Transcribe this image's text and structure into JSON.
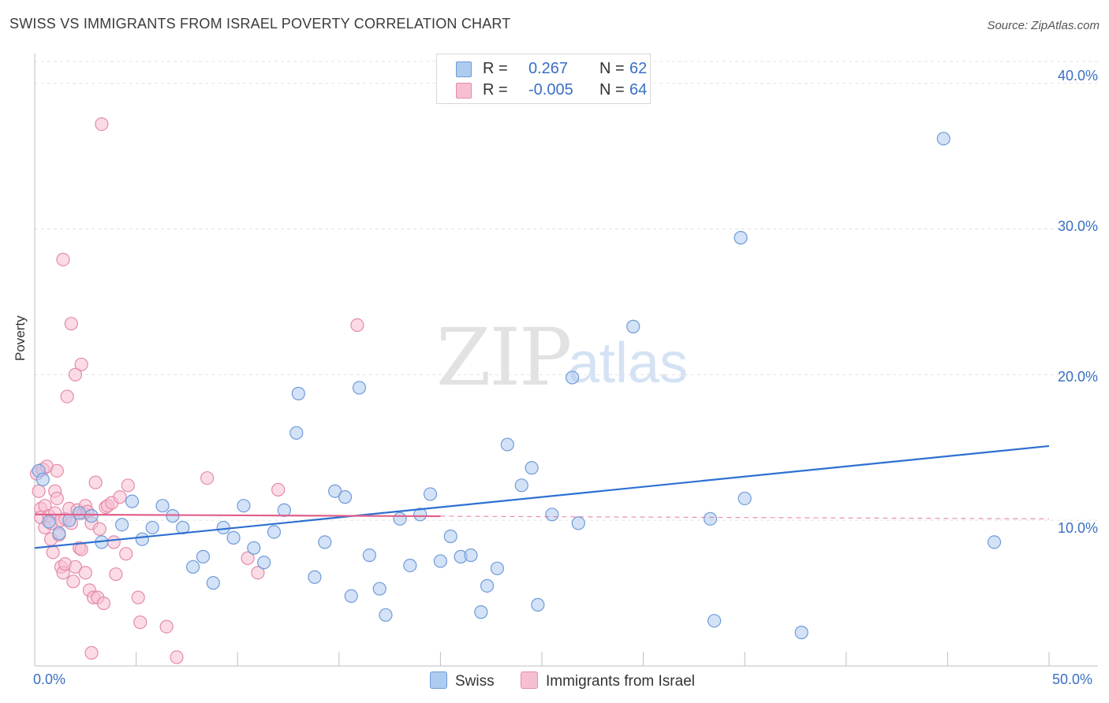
{
  "title": "SWISS VS IMMIGRANTS FROM ISRAEL POVERTY CORRELATION CHART",
  "source": "Source: ZipAtlas.com",
  "watermark": {
    "zip": "ZIP",
    "atlas": "atlas"
  },
  "legend": {
    "rows": [
      {
        "r_label": "R =",
        "r_value": "0.267",
        "n_label": "N =",
        "n_value": "62"
      },
      {
        "r_label": "R =",
        "r_value": "-0.005",
        "n_label": "N =",
        "n_value": "64"
      }
    ]
  },
  "colors": {
    "swiss_fill": "#aecbf0",
    "swiss_stroke": "#6f9bd8",
    "swiss_line": "#2e6fd0",
    "israel_fill": "#f7c0d2",
    "israel_stroke": "#e68aa8",
    "israel_line": "#e0608a",
    "axis_text": "#3a6fc4",
    "grid": "#e3e3e3"
  },
  "chart_data": {
    "type": "scatter",
    "title": "SWISS VS IMMIGRANTS FROM ISRAEL POVERTY CORRELATION CHART",
    "xlabel": "",
    "ylabel": "Poverty",
    "xlim": [
      0,
      50
    ],
    "ylim": [
      0,
      41.5
    ],
    "x_tick_labels": [
      "0.0%",
      "50.0%"
    ],
    "y_ticks": [
      10,
      20,
      30,
      40
    ],
    "y_tick_labels": [
      "10.0%",
      "20.0%",
      "30.0%",
      "40.0%"
    ],
    "grid": true,
    "legend_position": "top-center",
    "series": [
      {
        "name": "Swiss",
        "r": 0.267,
        "n": 62,
        "trend": {
          "x": [
            0,
            50
          ],
          "y": [
            8.1,
            15.1
          ],
          "dashed_extension": false
        },
        "points": [
          [
            0.2,
            13.4
          ],
          [
            0.4,
            12.8
          ],
          [
            0.7,
            9.9
          ],
          [
            1.2,
            9.1
          ],
          [
            1.7,
            10.0
          ],
          [
            2.2,
            10.5
          ],
          [
            2.8,
            10.3
          ],
          [
            3.3,
            8.5
          ],
          [
            4.3,
            9.7
          ],
          [
            4.8,
            11.3
          ],
          [
            5.3,
            8.7
          ],
          [
            5.8,
            9.5
          ],
          [
            6.3,
            11.0
          ],
          [
            6.8,
            10.3
          ],
          [
            7.3,
            9.5
          ],
          [
            7.8,
            6.8
          ],
          [
            8.3,
            7.5
          ],
          [
            8.8,
            5.7
          ],
          [
            9.3,
            9.5
          ],
          [
            9.8,
            8.8
          ],
          [
            10.3,
            11.0
          ],
          [
            10.8,
            8.1
          ],
          [
            11.3,
            7.1
          ],
          [
            11.8,
            9.2
          ],
          [
            12.3,
            10.7
          ],
          [
            12.9,
            16.0
          ],
          [
            13.0,
            18.7
          ],
          [
            13.8,
            6.1
          ],
          [
            14.3,
            8.5
          ],
          [
            14.8,
            12.0
          ],
          [
            15.3,
            11.6
          ],
          [
            15.6,
            4.8
          ],
          [
            16.0,
            19.1
          ],
          [
            16.5,
            7.6
          ],
          [
            17.0,
            5.3
          ],
          [
            17.3,
            3.5
          ],
          [
            18.0,
            10.1
          ],
          [
            18.5,
            6.9
          ],
          [
            19.0,
            10.4
          ],
          [
            19.5,
            11.8
          ],
          [
            20.0,
            7.2
          ],
          [
            20.5,
            8.9
          ],
          [
            21.0,
            7.5
          ],
          [
            21.5,
            7.6
          ],
          [
            22.0,
            3.7
          ],
          [
            22.3,
            5.5
          ],
          [
            22.8,
            6.7
          ],
          [
            23.3,
            15.2
          ],
          [
            24.0,
            12.4
          ],
          [
            24.5,
            13.6
          ],
          [
            24.8,
            4.2
          ],
          [
            25.5,
            10.4
          ],
          [
            26.5,
            19.8
          ],
          [
            26.8,
            9.8
          ],
          [
            29.5,
            23.3
          ],
          [
            33.3,
            10.1
          ],
          [
            33.5,
            3.1
          ],
          [
            34.8,
            29.4
          ],
          [
            35.0,
            11.5
          ],
          [
            37.8,
            2.3
          ],
          [
            44.8,
            36.2
          ],
          [
            47.3,
            8.5
          ]
        ]
      },
      {
        "name": "Immigrants from Israel",
        "r": -0.005,
        "n": 64,
        "trend": {
          "x": [
            0,
            50
          ],
          "y": [
            10.4,
            10.1
          ],
          "solid_until_x": 20,
          "dashed_extension": true
        },
        "points": [
          [
            0.1,
            13.2
          ],
          [
            0.2,
            12.0
          ],
          [
            0.3,
            10.8
          ],
          [
            0.3,
            10.2
          ],
          [
            0.4,
            13.5
          ],
          [
            0.5,
            11.0
          ],
          [
            0.5,
            9.5
          ],
          [
            0.6,
            13.7
          ],
          [
            0.7,
            10.3
          ],
          [
            0.8,
            9.8
          ],
          [
            0.8,
            8.7
          ],
          [
            0.9,
            7.8
          ],
          [
            1.0,
            12.0
          ],
          [
            1.0,
            10.5
          ],
          [
            1.1,
            13.4
          ],
          [
            1.1,
            11.5
          ],
          [
            1.2,
            9.0
          ],
          [
            1.3,
            10.0
          ],
          [
            1.3,
            6.8
          ],
          [
            1.4,
            6.4
          ],
          [
            1.4,
            27.9
          ],
          [
            1.5,
            10.1
          ],
          [
            1.5,
            7.0
          ],
          [
            1.6,
            18.5
          ],
          [
            1.7,
            10.8
          ],
          [
            1.8,
            9.8
          ],
          [
            1.8,
            23.5
          ],
          [
            1.9,
            5.8
          ],
          [
            2.0,
            20.0
          ],
          [
            2.0,
            6.8
          ],
          [
            2.1,
            10.7
          ],
          [
            2.2,
            8.1
          ],
          [
            2.3,
            20.7
          ],
          [
            2.3,
            8.0
          ],
          [
            2.4,
            10.5
          ],
          [
            2.5,
            6.4
          ],
          [
            2.5,
            11.0
          ],
          [
            2.6,
            10.6
          ],
          [
            2.7,
            5.2
          ],
          [
            2.8,
            9.8
          ],
          [
            2.9,
            4.7
          ],
          [
            3.0,
            12.6
          ],
          [
            3.1,
            4.7
          ],
          [
            3.2,
            9.4
          ],
          [
            3.3,
            37.2
          ],
          [
            3.4,
            4.3
          ],
          [
            3.5,
            10.9
          ],
          [
            3.6,
            11.0
          ],
          [
            3.8,
            11.2
          ],
          [
            3.9,
            8.5
          ],
          [
            4.0,
            6.3
          ],
          [
            4.2,
            11.6
          ],
          [
            4.5,
            7.7
          ],
          [
            4.6,
            12.4
          ],
          [
            5.1,
            4.7
          ],
          [
            5.2,
            3.0
          ],
          [
            6.5,
            2.7
          ],
          [
            7.0,
            0.6
          ],
          [
            8.5,
            12.9
          ],
          [
            10.5,
            7.4
          ],
          [
            11.0,
            6.4
          ],
          [
            12.0,
            12.1
          ],
          [
            15.9,
            23.4
          ],
          [
            2.8,
            0.9
          ]
        ]
      }
    ]
  },
  "bottom_legend": {
    "swiss": "Swiss",
    "israel": "Immigrants from Israel"
  }
}
